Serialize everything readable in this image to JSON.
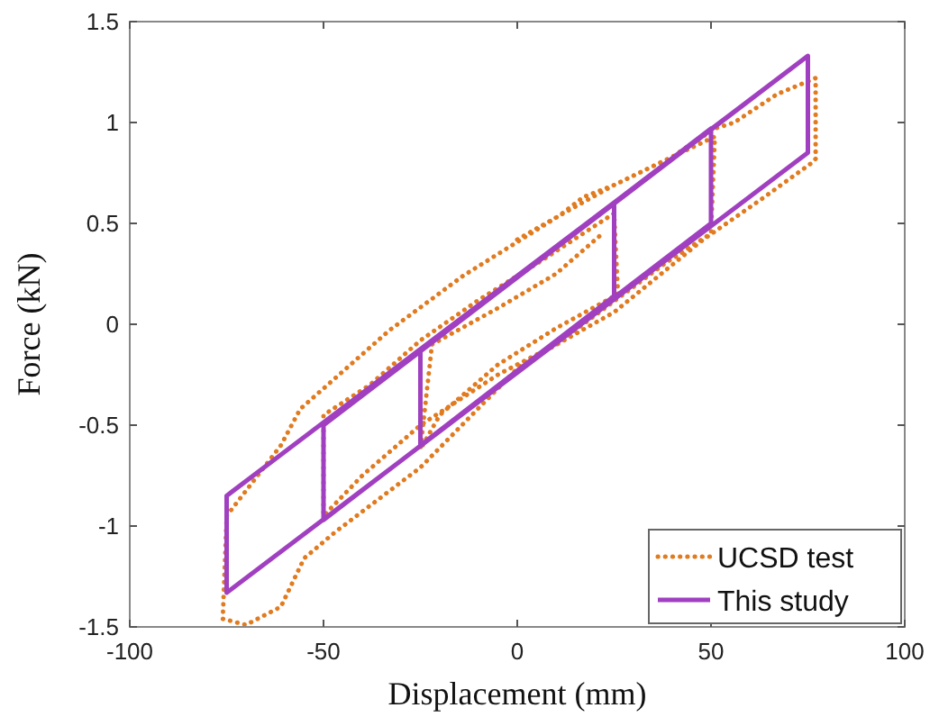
{
  "chart_data": {
    "type": "line",
    "xlabel": "Displacement (mm)",
    "ylabel": "Force (kN)",
    "xlim": [
      -100,
      100
    ],
    "ylim": [
      -1.5,
      1.5
    ],
    "xticks": [
      -100,
      -50,
      0,
      50,
      100
    ],
    "yticks": [
      -1.5,
      -1,
      -0.5,
      0,
      0.5,
      1,
      1.5
    ],
    "grid": false,
    "legend": "bottom right",
    "series": [
      {
        "name": "UCSD test",
        "color": "#e07b20",
        "line_style": "dotted",
        "x": [
          0,
          11,
          25,
          40,
          51,
          56,
          67,
          77,
          77,
          76,
          63,
          48,
          25,
          1,
          -25,
          -47,
          -55,
          -61,
          -70,
          -76,
          -75,
          -61,
          -56,
          -33,
          -14,
          11,
          17,
          25,
          40,
          51,
          50,
          38,
          24,
          10,
          -5,
          -25,
          -40,
          -50,
          -50,
          -38,
          -25,
          -10,
          5,
          25,
          26,
          10,
          -5,
          -20,
          -25,
          -22,
          -5,
          10,
          22
        ],
        "values": [
          0.42,
          0.54,
          0.69,
          0.83,
          0.97,
          1.0,
          1.14,
          1.22,
          0.82,
          0.8,
          0.62,
          0.42,
          0.06,
          -0.2,
          -0.71,
          -1.03,
          -1.16,
          -1.4,
          -1.49,
          -1.46,
          -0.95,
          -0.6,
          -0.42,
          -0.03,
          0.24,
          0.54,
          0.63,
          0.69,
          0.83,
          0.93,
          0.45,
          0.3,
          0.1,
          -0.1,
          -0.25,
          -0.5,
          -0.75,
          -0.95,
          -0.45,
          -0.3,
          -0.08,
          0.12,
          0.3,
          0.55,
          0.15,
          -0.02,
          -0.2,
          -0.45,
          -0.62,
          -0.1,
          0.08,
          0.25,
          0.45
        ]
      },
      {
        "name": "This study",
        "color": "#a040c0",
        "line_style": "solid",
        "x": [
          -25,
          25,
          25,
          -25,
          -25,
          50,
          50,
          -50,
          -50,
          75,
          75,
          -75,
          -75,
          75
        ],
        "values": [
          -0.13,
          0.6,
          0.14,
          -0.6,
          -0.13,
          0.97,
          0.5,
          -0.97,
          -0.5,
          1.33,
          0.85,
          -1.33,
          -0.85,
          1.33
        ]
      }
    ]
  }
}
